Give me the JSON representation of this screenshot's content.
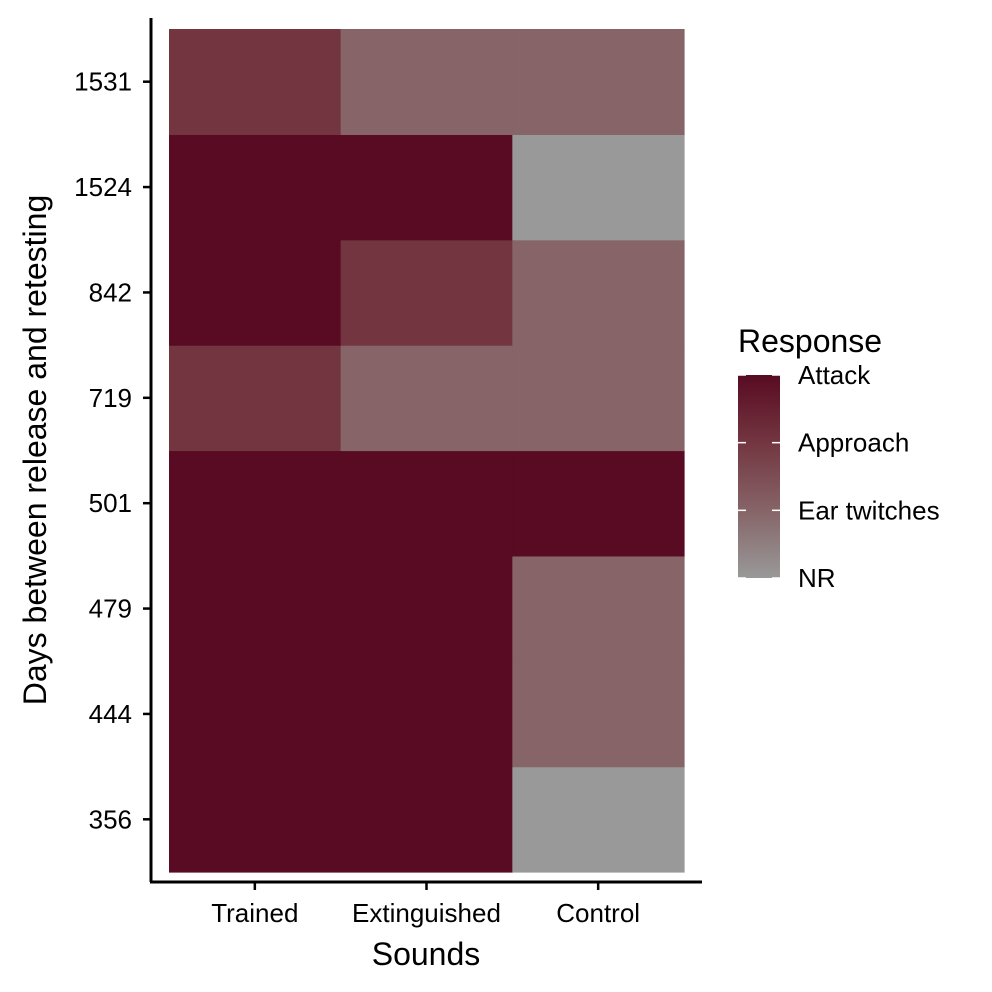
{
  "chart_data": {
    "type": "heatmap",
    "xlabel": "Sounds",
    "ylabel": "Days between release and retesting",
    "x_categories": [
      "Trained",
      "Extinguished",
      "Control"
    ],
    "y_categories": [
      "356",
      "444",
      "479",
      "501",
      "719",
      "842",
      "1524",
      "1531"
    ],
    "response_levels": [
      "NR",
      "Ear twitches",
      "Approach",
      "Attack"
    ],
    "level_colors": {
      "Attack": "#580b22",
      "Approach": "#733641",
      "Ear twitches": "#866467",
      "NR": "#999999"
    },
    "cells": [
      {
        "x": "Trained",
        "y": "356",
        "response": "Attack"
      },
      {
        "x": "Extinguished",
        "y": "356",
        "response": "Attack"
      },
      {
        "x": "Control",
        "y": "356",
        "response": "NR"
      },
      {
        "x": "Trained",
        "y": "444",
        "response": "Attack"
      },
      {
        "x": "Extinguished",
        "y": "444",
        "response": "Attack"
      },
      {
        "x": "Control",
        "y": "444",
        "response": "Ear twitches"
      },
      {
        "x": "Trained",
        "y": "479",
        "response": "Attack"
      },
      {
        "x": "Extinguished",
        "y": "479",
        "response": "Attack"
      },
      {
        "x": "Control",
        "y": "479",
        "response": "Ear twitches"
      },
      {
        "x": "Trained",
        "y": "501",
        "response": "Attack"
      },
      {
        "x": "Extinguished",
        "y": "501",
        "response": "Attack"
      },
      {
        "x": "Control",
        "y": "501",
        "response": "Attack"
      },
      {
        "x": "Trained",
        "y": "719",
        "response": "Approach"
      },
      {
        "x": "Extinguished",
        "y": "719",
        "response": "Ear twitches"
      },
      {
        "x": "Control",
        "y": "719",
        "response": "Ear twitches"
      },
      {
        "x": "Trained",
        "y": "842",
        "response": "Attack"
      },
      {
        "x": "Extinguished",
        "y": "842",
        "response": "Approach"
      },
      {
        "x": "Control",
        "y": "842",
        "response": "Ear twitches"
      },
      {
        "x": "Trained",
        "y": "1524",
        "response": "Attack"
      },
      {
        "x": "Extinguished",
        "y": "1524",
        "response": "Attack"
      },
      {
        "x": "Control",
        "y": "1524",
        "response": "NR"
      },
      {
        "x": "Trained",
        "y": "1531",
        "response": "Approach"
      },
      {
        "x": "Extinguished",
        "y": "1531",
        "response": "Ear twitches"
      },
      {
        "x": "Control",
        "y": "1531",
        "response": "Ear twitches"
      }
    ],
    "legend": {
      "title": "Response",
      "labels": [
        "Attack",
        "Approach",
        "Ear twitches",
        "NR"
      ],
      "placement": "right"
    },
    "grid": false
  }
}
